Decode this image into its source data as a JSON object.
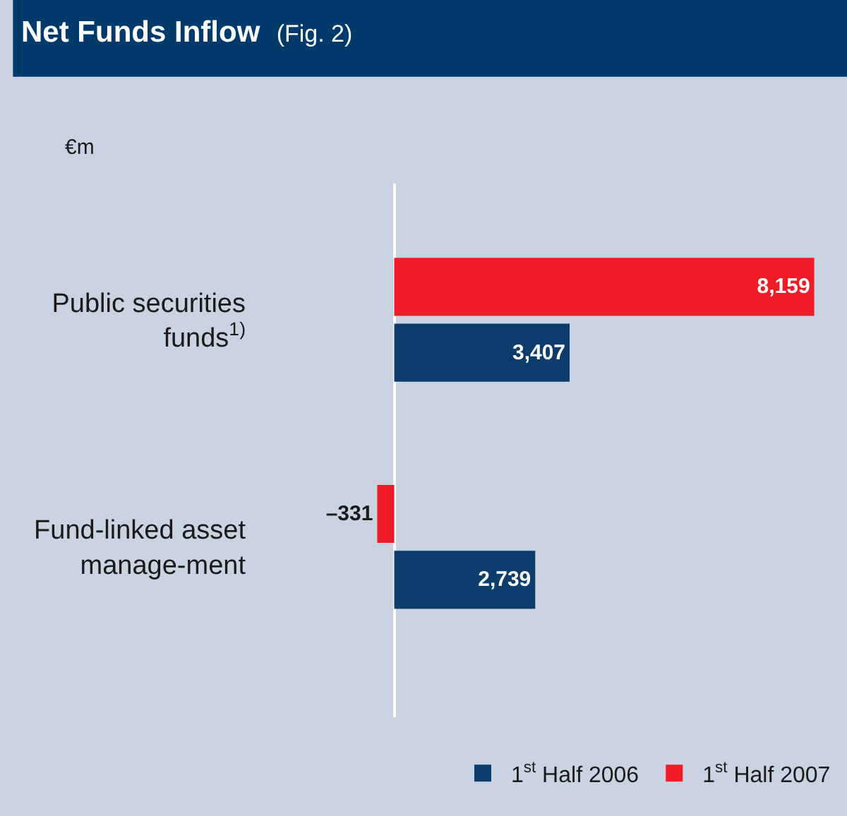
{
  "chart_data": {
    "type": "bar",
    "title": "Net Funds Inflow",
    "subtitle": "(Fig. 2)",
    "annotations": [
      "€m"
    ],
    "orientation": "horizontal",
    "categories": [
      "Public securities funds$^{1)}$",
      "Fund-linked asset manage-ment"
    ],
    "series": [
      {
        "name": "1$^{st}$ Half 2006",
        "color": "#0b3c6c",
        "values": [
          3407,
          2739
        ],
        "value_labels": [
          "3,407",
          "2,739"
        ]
      },
      {
        "name": "1$^{st}$ Half 2007",
        "color": "#ee1c25",
        "values": [
          8159,
          -331
        ],
        "value_labels": [
          "8,159",
          "–331"
        ]
      }
    ],
    "data_labels": true,
    "relative": false,
    "grid": false,
    "legend": "bottom"
  }
}
